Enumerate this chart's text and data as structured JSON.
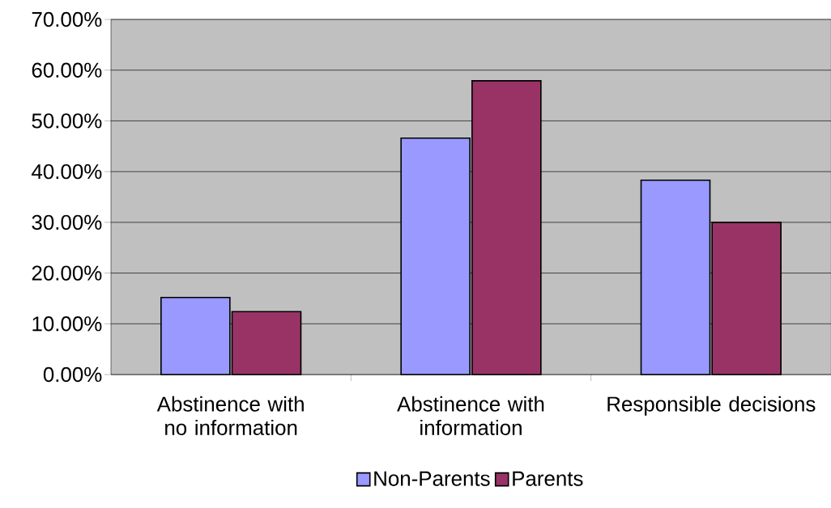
{
  "chart_data": {
    "type": "bar",
    "categories": [
      "Abstinence with no information",
      "Abstinence with information",
      "Responsible decisions"
    ],
    "series": [
      {
        "name": "Non-Parents",
        "color": "#9999ff",
        "values": [
          15.2,
          46.6,
          38.3
        ]
      },
      {
        "name": "Parents",
        "color": "#993366",
        "values": [
          12.4,
          57.9,
          30.0
        ]
      }
    ],
    "ylim": [
      0,
      70
    ],
    "yticks": [
      {
        "value": 0,
        "label": "0.00%"
      },
      {
        "value": 10,
        "label": "10.00%"
      },
      {
        "value": 20,
        "label": "20.00%"
      },
      {
        "value": 30,
        "label": "30.00%"
      },
      {
        "value": 40,
        "label": "40.00%"
      },
      {
        "value": 50,
        "label": "50.00%"
      },
      {
        "value": 60,
        "label": "60.00%"
      },
      {
        "value": 70,
        "label": "70.00%"
      }
    ],
    "grid": "y",
    "legend": "bottom"
  }
}
